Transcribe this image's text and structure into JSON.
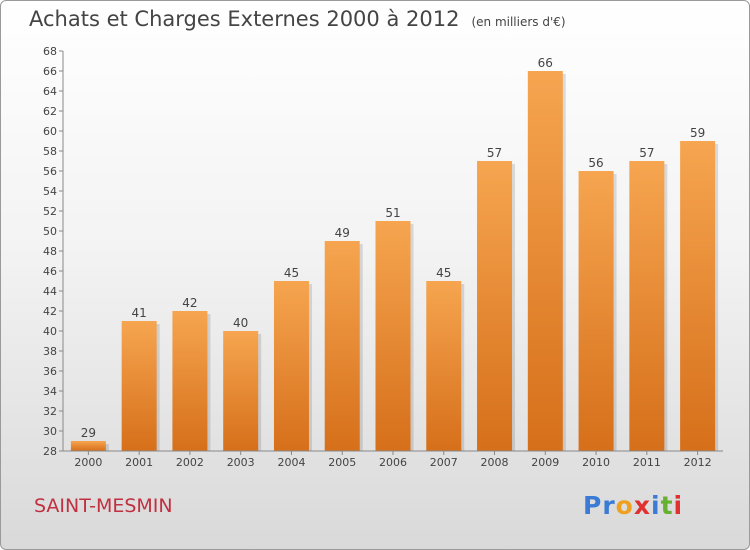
{
  "header": {
    "title": "Achats et Charges Externes 2000 à 2012",
    "unit": "(en milliers d'€)"
  },
  "footer": {
    "commune": "SAINT-MESMIN"
  },
  "logo": {
    "letters": [
      "P",
      "r",
      "o",
      "x",
      "i",
      "t",
      "i"
    ],
    "colors": [
      "#3a7bd5",
      "#3a7bd5",
      "#f0a020",
      "#e03030",
      "#3a7bd5",
      "#66b032",
      "#e03030"
    ]
  },
  "colors": {
    "bar_top": "#f6a550",
    "bar_bottom": "#d66f1a",
    "axis": "#888888",
    "label": "#444444"
  },
  "chart_data": {
    "type": "bar",
    "categories": [
      "2000",
      "2001",
      "2002",
      "2003",
      "2004",
      "2005",
      "2006",
      "2007",
      "2008",
      "2009",
      "2010",
      "2011",
      "2012"
    ],
    "values": [
      29,
      41,
      42,
      40,
      45,
      49,
      51,
      45,
      57,
      66,
      56,
      57,
      59
    ],
    "ylim": [
      28,
      68
    ],
    "yticks": [
      28,
      30,
      32,
      34,
      36,
      38,
      40,
      42,
      44,
      46,
      48,
      50,
      52,
      54,
      56,
      58,
      60,
      62,
      64,
      66,
      68
    ],
    "grid": false,
    "title": "Achats et Charges Externes 2000 à 2012",
    "xlabel": "",
    "ylabel": ""
  }
}
